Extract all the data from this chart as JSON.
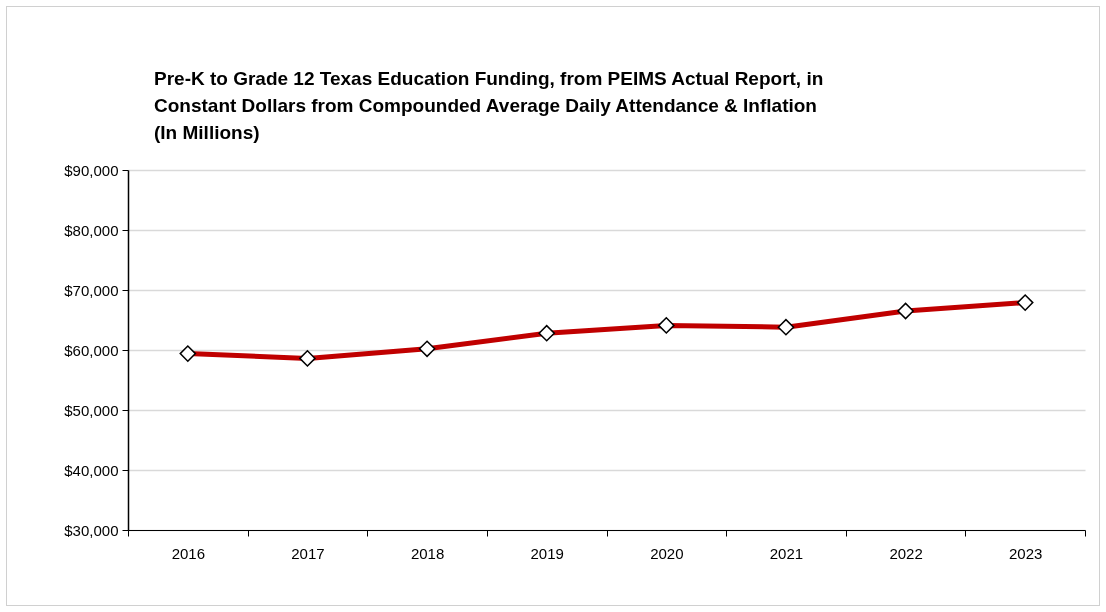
{
  "chart_data": {
    "type": "line",
    "title": "Pre-K to Grade 12 Texas Education Funding, from PEIMS Actual Report, in\nConstant Dollars from Compounded Average Daily Attendance & Inflation\n(In Millions)",
    "categories": [
      "2016",
      "2017",
      "2018",
      "2019",
      "2020",
      "2021",
      "2022",
      "2023"
    ],
    "series": [
      {
        "color": "#c00000",
        "values": [
          59400,
          58600,
          60200,
          62800,
          64100,
          63800,
          66500,
          67900
        ]
      }
    ],
    "ylim": [
      30000,
      90000
    ],
    "yticks": [
      {
        "value": 30000,
        "label": "$30,000"
      },
      {
        "value": 40000,
        "label": "$40,000"
      },
      {
        "value": 50000,
        "label": "$50,000"
      },
      {
        "value": 60000,
        "label": "$60,000"
      },
      {
        "value": 70000,
        "label": "$70,000"
      },
      {
        "value": 80000,
        "label": "$80,000"
      },
      {
        "value": 90000,
        "label": "$90,000"
      }
    ],
    "grid": "y",
    "marker": "diamond",
    "line_style": "solid"
  }
}
